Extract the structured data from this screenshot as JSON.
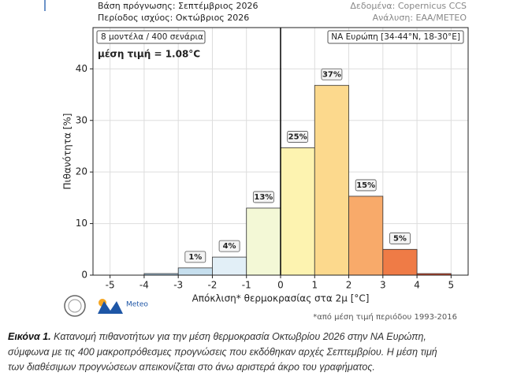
{
  "header": {
    "left": [
      "Βάση πρόγνωσης: Σεπτέμβριος 2026",
      "Περίοδος ισχύος: Οκτώβριος 2026"
    ],
    "right": [
      "Δεδομένα: Copernicus CCS",
      "Ανάλυση: ΕΑΑ/METEO"
    ]
  },
  "chart_data": {
    "type": "histogram",
    "bins": [
      -5,
      -4,
      -3,
      -2,
      -1,
      0,
      1,
      2,
      3,
      4,
      5
    ],
    "values": [
      0,
      0.3,
      1.4,
      3.5,
      13,
      24.7,
      36.8,
      15.3,
      5,
      0.3
    ],
    "value_labels": [
      null,
      null,
      "1%",
      "4%",
      "13%",
      "25%",
      "37%",
      "15%",
      "5%",
      null
    ],
    "colors": [
      "#a6c8e0",
      "#a6c8e0",
      "#c6dfee",
      "#e2eff7",
      "#f3f8d6",
      "#fdf3b0",
      "#fcd98d",
      "#f8aa6a",
      "#ef7b46",
      "#d94a2a"
    ],
    "xlim": [
      -5.5,
      5.5
    ],
    "xticks": [
      -5,
      -4,
      -3,
      -2,
      -1,
      0,
      1,
      2,
      3,
      4,
      5
    ],
    "ylim": [
      0,
      48
    ],
    "yticks": [
      0,
      10,
      20,
      30,
      40
    ],
    "grid": true,
    "xlabel": "Απόκλιση* θερμοκρασίας στα 2μ [°C]",
    "ylabel": "Πιθανότητα [%]",
    "annotations": [
      "8 μοντέλα / 400 σενάρια",
      "μέση τιμή = 1.08°C",
      "ΝΑ Ευρώπη [34-44°N, 18-30°E]"
    ]
  },
  "footnote": "*από μέση τιμή περιόδου 1993-2016",
  "logo": "Meteo",
  "caption": {
    "label": "Εικόνα 1.",
    "lines": [
      "Κατανομή πιθανοτήτων για την μέση θερμοκρασία Οκτωβρίου 2026 στην ΝΑ Ευρώπη,",
      "σύμφωνα με τις 400 μακροπρόθεσμες προγνώσεις που εκδόθηκαν αρχές Σεπτεμβρίου. Η μέση τιμή",
      "των διαθέσιμων προγνώσεων απεικονίζεται στο άνω αριστερά άκρο του γραφήματος."
    ]
  }
}
